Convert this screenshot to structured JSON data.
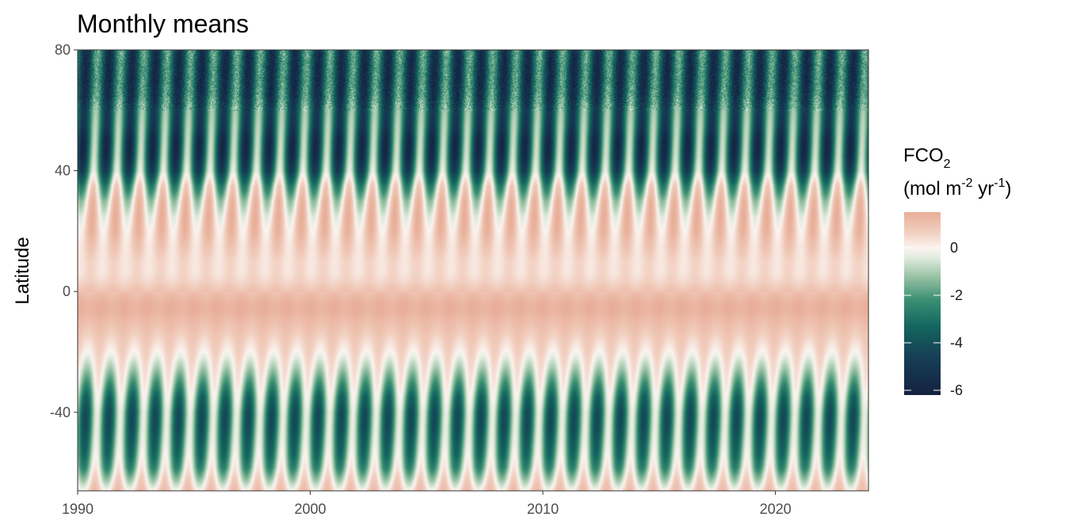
{
  "chart_data": {
    "type": "heatmap",
    "title": "Monthly means",
    "xlabel": "",
    "ylabel": "Latitude",
    "xlim": [
      1990,
      2024
    ],
    "ylim": [
      -66,
      80
    ],
    "x_ticks": [
      1990,
      2000,
      2010,
      2020
    ],
    "x_tick_labels": [
      "1990",
      "2000",
      "2010",
      "2020"
    ],
    "y_ticks": [
      80,
      40,
      0,
      -40
    ],
    "y_tick_labels": [
      "80",
      "40",
      "0",
      "-40"
    ],
    "legend": {
      "title_line1": "FCO",
      "title_line1_sub": "2",
      "title_line2_a": "(mol m",
      "title_line2_sup1": "-2",
      "title_line2_b": " yr",
      "title_line2_sup2": "-1",
      "title_line2_c": ")",
      "placement": "right",
      "range": [
        -6.2,
        1.5
      ],
      "ticks": [
        0,
        -2,
        -4,
        -6
      ],
      "tick_labels": [
        "0",
        "-2",
        "-4",
        "-6"
      ]
    },
    "colorscale": [
      {
        "value": -6.2,
        "color": "#13213f"
      },
      {
        "value": -4.6,
        "color": "#163f55"
      },
      {
        "value": -3.3,
        "color": "#14665f"
      },
      {
        "value": -2.2,
        "color": "#3a8f74"
      },
      {
        "value": -1.2,
        "color": "#9bc3a5"
      },
      {
        "value": -0.4,
        "color": "#e2ecdf"
      },
      {
        "value": 0.0,
        "color": "#fbf3ef"
      },
      {
        "value": 0.7,
        "color": "#f1cdbd"
      },
      {
        "value": 1.5,
        "color": "#e8ad97"
      }
    ],
    "latitude_profile": {
      "lat": [
        -66,
        -62,
        -58,
        -54,
        -50,
        -45,
        -40,
        -35,
        -30,
        -25,
        -20,
        -15,
        -10,
        -6,
        -3,
        0,
        3,
        6,
        10,
        15,
        20,
        25,
        30,
        35,
        40,
        45,
        50,
        55,
        60,
        65,
        70,
        75,
        80
      ],
      "mean": [
        0.6,
        -0.3,
        -1.2,
        -1.7,
        -2.0,
        -2.3,
        -2.3,
        -1.8,
        -1.0,
        -0.3,
        0.3,
        0.7,
        1.1,
        1.4,
        1.3,
        1.0,
        0.6,
        0.4,
        0.4,
        0.6,
        0.7,
        0.5,
        0.0,
        -1.0,
        -2.6,
        -3.2,
        -3.3,
        -3.0,
        -3.0,
        -3.6,
        -3.8,
        -3.8,
        -3.6
      ],
      "seasonal_amplitude": [
        0.6,
        1.1,
        1.5,
        1.7,
        1.8,
        2.0,
        2.0,
        1.8,
        1.3,
        0.8,
        0.4,
        0.2,
        0.1,
        0.1,
        0.1,
        0.1,
        0.1,
        0.2,
        0.2,
        0.4,
        0.7,
        1.0,
        1.4,
        1.9,
        2.3,
        2.6,
        2.6,
        2.2,
        2.0,
        2.0,
        2.0,
        2.0,
        2.0
      ]
    }
  }
}
